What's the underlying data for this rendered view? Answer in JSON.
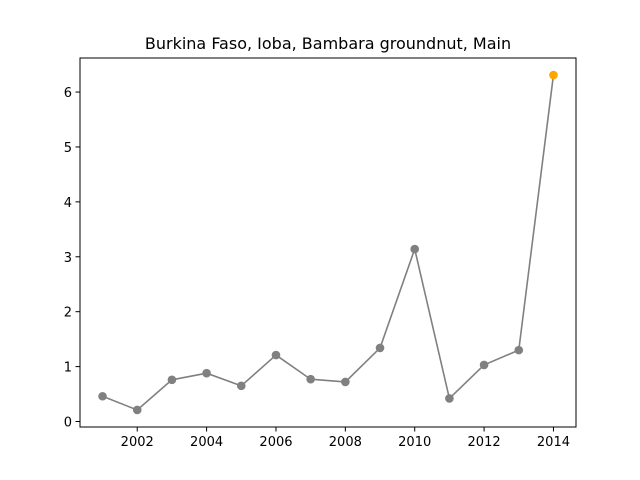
{
  "chart_data": {
    "type": "line",
    "title": "Burkina Faso, Ioba, Bambara groundnut, Main",
    "xlabel": "",
    "ylabel": "",
    "x": [
      2001,
      2002,
      2003,
      2004,
      2005,
      2006,
      2007,
      2008,
      2009,
      2010,
      2011,
      2012,
      2013,
      2014
    ],
    "series": [
      {
        "values": [
          0.46,
          0.21,
          0.76,
          0.88,
          0.65,
          1.21,
          0.77,
          0.72,
          1.34,
          3.14,
          0.42,
          1.03,
          1.3,
          6.31
        ],
        "color": "#808080"
      }
    ],
    "highlight": {
      "x": 2014,
      "y": 6.31,
      "color": "#ffa500"
    },
    "xlim": [
      2000.35,
      2014.65
    ],
    "ylim": [
      -0.1,
      6.62
    ],
    "xticks": [
      2002,
      2004,
      2006,
      2008,
      2010,
      2012,
      2014
    ],
    "xtick_labels": [
      "2002",
      "2004",
      "2006",
      "2008",
      "2010",
      "2012",
      "2014"
    ],
    "yticks": [
      0,
      1,
      2,
      3,
      4,
      5,
      6
    ],
    "ytick_labels": [
      "0",
      "1",
      "2",
      "3",
      "4",
      "5",
      "6"
    ],
    "grid": false,
    "legend": "none"
  }
}
